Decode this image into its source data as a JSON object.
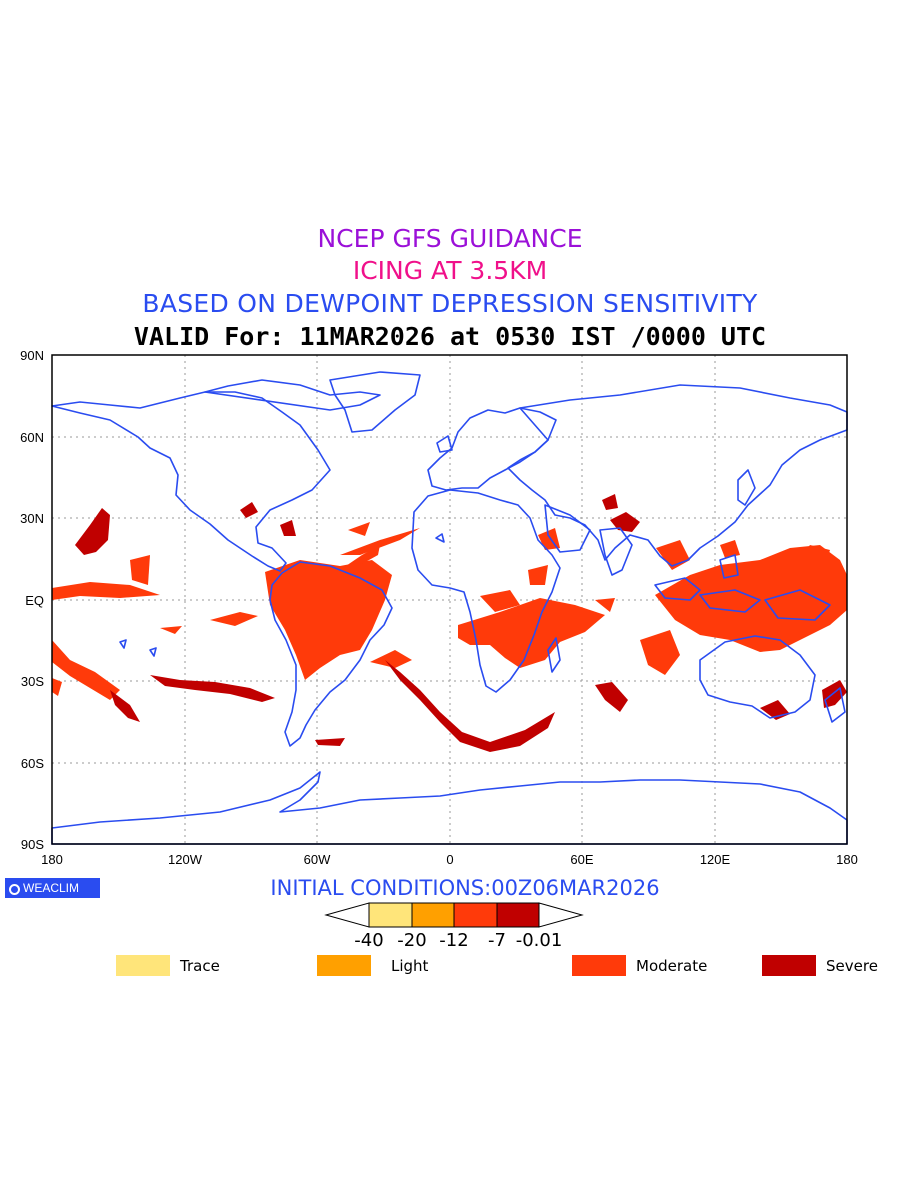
{
  "titles": {
    "line1": "NCEP GFS GUIDANCE",
    "line2": "ICING AT 3.5KM",
    "line3": "BASED ON DEWPOINT DEPRESSION SENSITIVITY",
    "line4": "VALID For: 11MAR2026 at 0530 IST /0000 UTC"
  },
  "map": {
    "projection": "cylindrical equidistant",
    "lon_range": [
      -180,
      180
    ],
    "lat_range": [
      -90,
      90
    ],
    "lon_ticks": [
      "180",
      "120W",
      "60W",
      "0",
      "60E",
      "120E",
      "180"
    ],
    "lat_ticks": [
      "90N",
      "60N",
      "30N",
      "EQ",
      "30S",
      "60S",
      "90S"
    ],
    "grid": "dotted",
    "coast_color": "#2a4cf0"
  },
  "brand": {
    "label": "WEACLIM"
  },
  "initial_conditions": "INITIAL CONDITIONS:00Z06MAR2026",
  "colorbar": {
    "tick_labels": [
      "-40",
      "-20",
      "-12",
      "-7",
      "-0.01"
    ],
    "colors": [
      "#ffe57a",
      "#ffa000",
      "#ff3a0a",
      "#c00000"
    ]
  },
  "legend": [
    {
      "label": "Trace",
      "color": "#ffe57a"
    },
    {
      "label": "Light",
      "color": "#ffa000"
    },
    {
      "label": "Moderate",
      "color": "#ff3a0a"
    },
    {
      "label": "Severe",
      "color": "#c00000"
    }
  ]
}
